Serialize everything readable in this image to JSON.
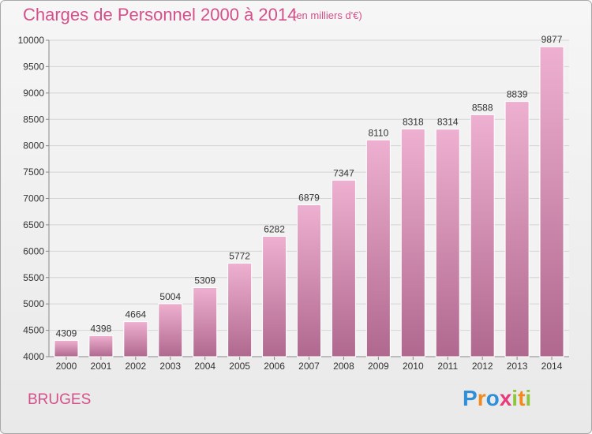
{
  "header": {
    "title": "Charges de Personnel 2000 à 2014",
    "subtitle": "(en milliers d'€)"
  },
  "footer": {
    "town": "BRUGES",
    "logo": [
      "P",
      "r",
      "o",
      "x",
      "i",
      "t",
      "i"
    ],
    "logo_colors": [
      "#2f8ed8",
      "#f08a1c",
      "#8cc63f",
      "#e83a7a"
    ]
  },
  "chart_data": {
    "type": "bar",
    "title": "Charges de Personnel 2000 à 2014",
    "subtitle": "(en milliers d'€)",
    "categories": [
      "2000",
      "2001",
      "2002",
      "2003",
      "2004",
      "2005",
      "2006",
      "2007",
      "2008",
      "2009",
      "2010",
      "2011",
      "2012",
      "2013",
      "2014"
    ],
    "values": [
      4309,
      4398,
      4664,
      5004,
      5309,
      5772,
      6282,
      6879,
      7347,
      8110,
      8318,
      8314,
      8588,
      8839,
      9877
    ],
    "ylim": [
      4000,
      10000
    ],
    "yticks": [
      4000,
      4500,
      5000,
      5500,
      6000,
      6500,
      7000,
      7500,
      8000,
      8500,
      9000,
      9500,
      10000
    ],
    "grid": true,
    "bar_color_top": "#eeb0d0",
    "bar_color_bottom": "#b0688e"
  }
}
